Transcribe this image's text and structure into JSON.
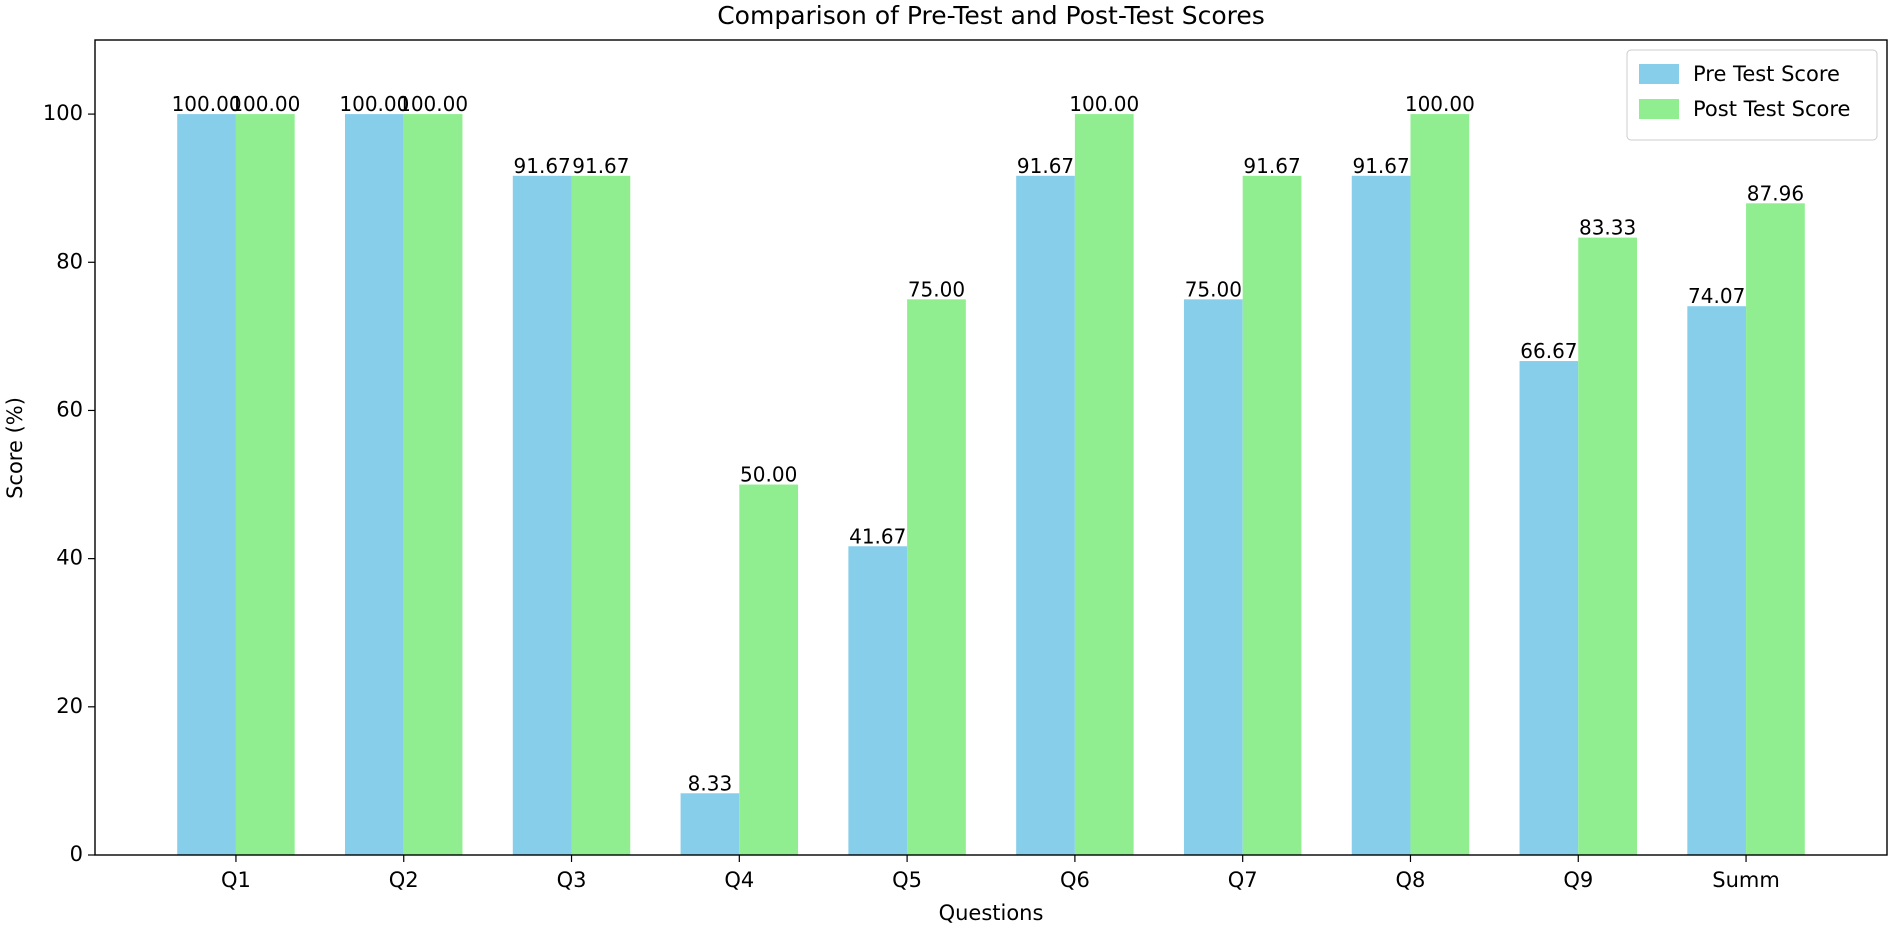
{
  "chart_data": {
    "type": "bar",
    "title": "Comparison of Pre-Test and Post-Test Scores",
    "x_label": "Questions",
    "y_label": "Score (%)",
    "categories": [
      "Q1",
      "Q2",
      "Q3",
      "Q4",
      "Q5",
      "Q6",
      "Q7",
      "Q8",
      "Q9",
      "Summ"
    ],
    "series": [
      {
        "name": "Pre Test Score",
        "color": "#87ceeb",
        "values": [
          100,
          100,
          91.67,
          8.33,
          41.67,
          91.67,
          75,
          91.67,
          66.67,
          74.07
        ],
        "value_labels": [
          "100.00",
          "100.00",
          "91.67",
          "8.33",
          "41.67",
          "91.67",
          "75.00",
          "91.67",
          "66.67",
          "74.07"
        ]
      },
      {
        "name": "Post Test Score",
        "color": "#90ee90",
        "values": [
          100,
          100,
          91.67,
          50,
          75,
          100,
          91.67,
          100,
          83.33,
          87.96
        ],
        "value_labels": [
          "100.00",
          "100.00",
          "91.67",
          "50.00",
          "75.00",
          "100.00",
          "91.67",
          "100.00",
          "83.33",
          "87.96"
        ]
      }
    ],
    "ylim": [
      0,
      110
    ],
    "yticks": [
      0,
      20,
      40,
      60,
      80,
      100
    ],
    "grid": false,
    "legend": "upper right"
  }
}
